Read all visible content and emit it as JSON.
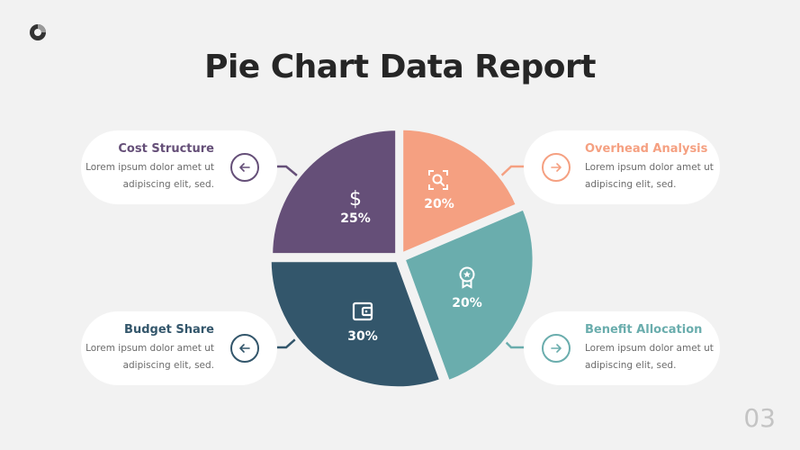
{
  "title": "Pie Chart Data Report",
  "page_number": "03",
  "chart_data": {
    "type": "pie",
    "slices": [
      {
        "label": "Overhead Analysis",
        "value": 20,
        "display": "20%",
        "color": "#f5a081",
        "icon": "search-scan-icon"
      },
      {
        "label": "Benefit Allocation",
        "value": 20,
        "display": "20%",
        "color": "#6aadad",
        "icon": "award-badge-icon"
      },
      {
        "label": "Budget Share",
        "value": 30,
        "display": "30%",
        "color": "#33566b",
        "icon": "wallet-icon"
      },
      {
        "label": "Cost Structure",
        "value": 25,
        "display": "25%",
        "color": "#654f78",
        "icon": "dollar-icon"
      }
    ]
  },
  "cards": {
    "cost": {
      "title": "Cost Structure",
      "line1": "Lorem ipsum dolor amet ut",
      "line2": "adipiscing elit, sed.",
      "color": "#654f78"
    },
    "overhead": {
      "title": "Overhead Analysis",
      "line1": "Lorem ipsum dolor amet ut",
      "line2": "adipiscing elit, sed.",
      "color": "#f5a081"
    },
    "budget": {
      "title": "Budget Share",
      "line1": "Lorem ipsum dolor amet ut",
      "line2": "adipiscing elit, sed.",
      "color": "#33566b"
    },
    "benefit": {
      "title": "Benefit Allocation",
      "line1": "Lorem ipsum dolor amet ut",
      "line2": "adipiscing elit, sed.",
      "color": "#6aadad"
    }
  }
}
